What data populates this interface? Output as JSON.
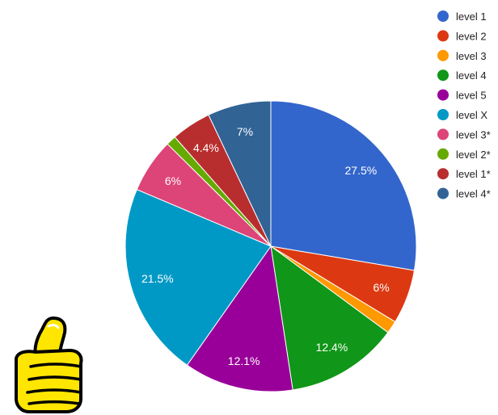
{
  "chart_data": {
    "type": "pie",
    "legend_position": "right",
    "slices": [
      {
        "name": "level 1",
        "value": 27.5,
        "label": "27.5%",
        "color": "#3366cc"
      },
      {
        "name": "level 2",
        "value": 6.0,
        "label": "6%",
        "color": "#dc3912"
      },
      {
        "name": "level 3",
        "value": 1.4,
        "label": "",
        "color": "#ff9900"
      },
      {
        "name": "level 4",
        "value": 12.4,
        "label": "12.4%",
        "color": "#109618"
      },
      {
        "name": "level 5",
        "value": 12.1,
        "label": "12.1%",
        "color": "#990099"
      },
      {
        "name": "level X",
        "value": 21.5,
        "label": "21.5%",
        "color": "#0099c6"
      },
      {
        "name": "level 3*",
        "value": 6.0,
        "label": "6%",
        "color": "#dd4477"
      },
      {
        "name": "level 2*",
        "value": 1.1,
        "label": "",
        "color": "#66aa00"
      },
      {
        "name": "level 1*",
        "value": 4.4,
        "label": "4.4%",
        "color": "#b82e2e"
      },
      {
        "name": "level 4*",
        "value": 7.0,
        "label": "7%",
        "color": "#316395"
      }
    ]
  },
  "decoration": {
    "icon": "thumbs-up-icon",
    "fill_color": "#ffe600",
    "outline_color": "#000000"
  }
}
